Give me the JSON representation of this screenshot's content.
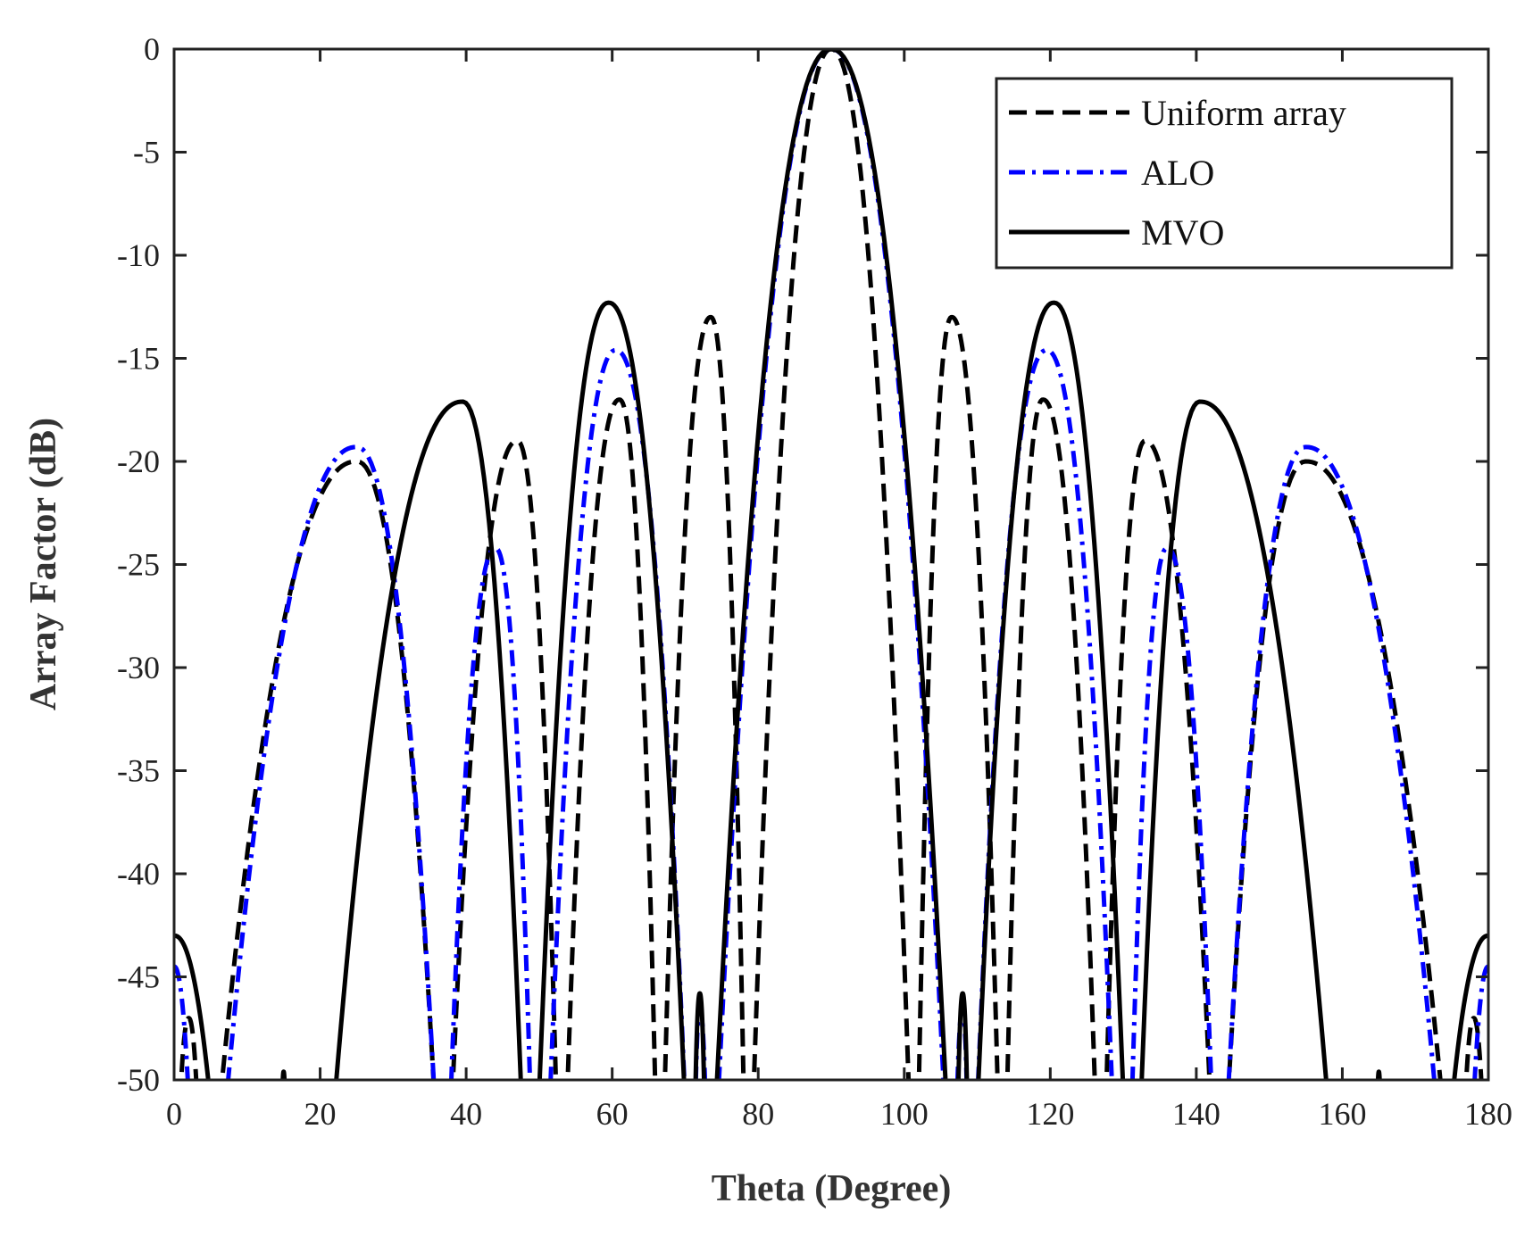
{
  "chart_data": {
    "type": "line",
    "title": "",
    "xlabel": "Theta (Degree)",
    "ylabel": "Array Factor (dB)",
    "xlim": [
      0,
      180
    ],
    "ylim": [
      -50,
      0
    ],
    "xticks": [
      0,
      20,
      40,
      60,
      80,
      100,
      120,
      140,
      160,
      180
    ],
    "yticks": [
      0,
      -5,
      -10,
      -15,
      -20,
      -25,
      -30,
      -35,
      -40,
      -45,
      -50
    ],
    "grid": false,
    "legend_position": "top-right",
    "series": [
      {
        "name": "Uniform array",
        "color": "#000000",
        "dash": "dashed",
        "lobes": [
          {
            "start": 0,
            "peak_x": 2,
            "peak_y": -47,
            "end": 4
          },
          {
            "start": 4,
            "peak_x": 25,
            "peak_y": -20,
            "end": 37
          },
          {
            "start": 37,
            "peak_x": 47,
            "peak_y": -19,
            "end": 53
          },
          {
            "start": 53,
            "peak_x": 61,
            "peak_y": -17,
            "end": 66.5
          },
          {
            "start": 66.5,
            "peak_x": 73.5,
            "peak_y": -13,
            "end": 78.5
          },
          {
            "start": 78.5,
            "peak_x": 90,
            "peak_y": 0,
            "end": 101.5
          },
          {
            "start": 101.5,
            "peak_x": 106.5,
            "peak_y": -13,
            "end": 113.5
          },
          {
            "start": 113.5,
            "peak_x": 119,
            "peak_y": -17,
            "end": 127
          },
          {
            "start": 127,
            "peak_x": 133,
            "peak_y": -19,
            "end": 143
          },
          {
            "start": 143,
            "peak_x": 155,
            "peak_y": -20,
            "end": 176
          },
          {
            "start": 176,
            "peak_x": 178,
            "peak_y": -47,
            "end": 180
          }
        ]
      },
      {
        "name": "ALO",
        "color": "#0000ff",
        "dash": "dash-dot",
        "lobes": [
          {
            "start": 0,
            "peak_x": 0,
            "peak_y": -44.5,
            "end": 3
          },
          {
            "start": 5,
            "peak_x": 25,
            "peak_y": -19.3,
            "end": 37
          },
          {
            "start": 37,
            "peak_x": 44,
            "peak_y": -24.2,
            "end": 49.5
          },
          {
            "start": 50.5,
            "peak_x": 60.5,
            "peak_y": -14.6,
            "end": 71
          },
          {
            "start": 71,
            "peak_x": 72,
            "peak_y": -46.5,
            "end": 73.3
          },
          {
            "start": 73.3,
            "peak_x": 90,
            "peak_y": 0,
            "end": 106.7
          },
          {
            "start": 106.7,
            "peak_x": 108,
            "peak_y": -46.5,
            "end": 109
          },
          {
            "start": 109,
            "peak_x": 119.5,
            "peak_y": -14.6,
            "end": 129.5
          },
          {
            "start": 130.5,
            "peak_x": 136,
            "peak_y": -24.2,
            "end": 143
          },
          {
            "start": 143,
            "peak_x": 155,
            "peak_y": -19.3,
            "end": 175
          },
          {
            "start": 177,
            "peak_x": 180,
            "peak_y": -44.5,
            "end": 180
          }
        ]
      },
      {
        "name": "MVO",
        "color": "#000000",
        "dash": "solid",
        "lobes": [
          {
            "start": 0,
            "peak_x": 0,
            "peak_y": -43,
            "end": 7
          },
          {
            "start": 14.5,
            "peak_x": 15,
            "peak_y": -49.6,
            "end": 15.5
          },
          {
            "start": 20,
            "peak_x": 39.5,
            "peak_y": -17.1,
            "end": 48.5
          },
          {
            "start": 49,
            "peak_x": 59.5,
            "peak_y": -12.3,
            "end": 71
          },
          {
            "start": 71,
            "peak_x": 72,
            "peak_y": -45.8,
            "end": 73
          },
          {
            "start": 73,
            "peak_x": 90,
            "peak_y": 0,
            "end": 107
          },
          {
            "start": 107,
            "peak_x": 108,
            "peak_y": -45.8,
            "end": 109
          },
          {
            "start": 109,
            "peak_x": 120.5,
            "peak_y": -12.3,
            "end": 131
          },
          {
            "start": 131.5,
            "peak_x": 140.5,
            "peak_y": -17.1,
            "end": 160
          },
          {
            "start": 164.5,
            "peak_x": 165,
            "peak_y": -49.6,
            "end": 165.5
          },
          {
            "start": 173,
            "peak_x": 180,
            "peak_y": -43,
            "end": 180
          }
        ]
      }
    ]
  }
}
